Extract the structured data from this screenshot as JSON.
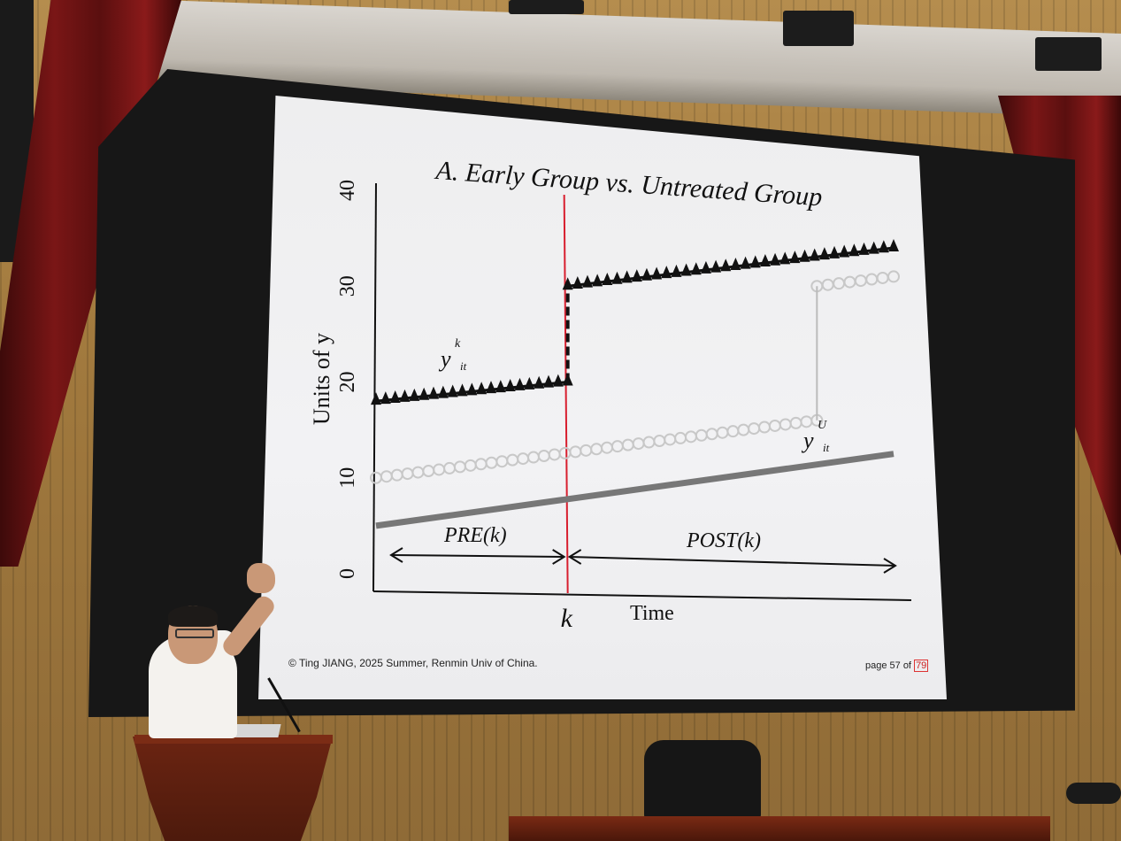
{
  "slide": {
    "title": "A. Early Group vs. Untreated Group",
    "footer_left": "© Ting JIANG, 2025 Summer, Renmin Univ of China.",
    "footer_page_prefix": "page 57 of ",
    "footer_page_total": "79"
  },
  "chart_data": {
    "type": "line",
    "title": "A. Early Group vs. Untreated Group",
    "xlabel": "Time",
    "ylabel": "Units of y",
    "ylim": [
      0,
      40
    ],
    "yticks": [
      "0",
      "10",
      "20",
      "30",
      "40"
    ],
    "xtick_labels": [
      "k"
    ],
    "annotations": [
      "PRE(k)",
      "POST(k)"
    ],
    "series": [
      {
        "name": "y^k_it",
        "label_main": "y",
        "label_sup": "k",
        "label_sub": "it",
        "segments": [
          {
            "x": [
              0,
              1
            ],
            "y": [
              18,
              20
            ]
          },
          {
            "x": [
              1,
              2.7
            ],
            "y": [
              30,
              34
            ]
          }
        ],
        "color": "#111111",
        "marker": "triangle"
      },
      {
        "name": "gray-circles",
        "segments": [
          {
            "x": [
              0,
              2.3
            ],
            "y": [
              10,
              16
            ]
          },
          {
            "x": [
              2.3,
              2.7
            ],
            "y": [
              30,
              31
            ]
          }
        ],
        "color": "#c8c8c8",
        "marker": "circle"
      },
      {
        "name": "y^U_it",
        "label_main": "y",
        "label_sup": "U",
        "label_sub": "it",
        "segments": [
          {
            "x": [
              0,
              2.7
            ],
            "y": [
              5,
              12.5
            ]
          }
        ],
        "color": "#777777",
        "marker": "none"
      }
    ],
    "treatment_line_x": 1,
    "treatment_line_color": "#d81e2e",
    "grid": false,
    "legend": "none"
  }
}
